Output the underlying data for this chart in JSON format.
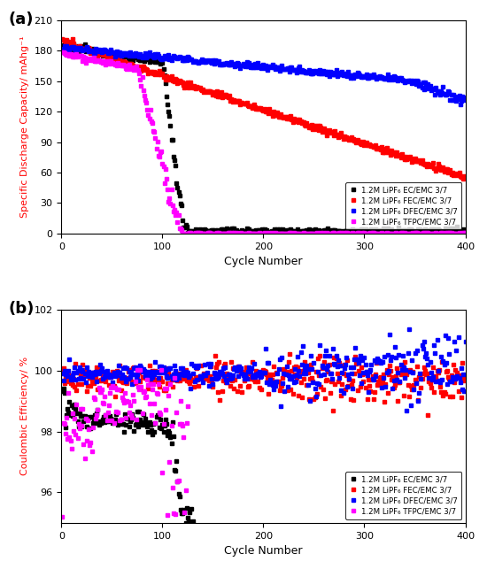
{
  "fig_width": 5.5,
  "fig_height": 6.43,
  "dpi": 100,
  "panel_a": {
    "xlabel": "Cycle Number",
    "ylabel": "Specific Discharge Capacity/ mAhg⁻¹",
    "xlim": [
      0,
      400
    ],
    "ylim": [
      0,
      210
    ],
    "yticks": [
      0,
      30,
      60,
      90,
      120,
      150,
      180,
      210
    ],
    "xticks": [
      0,
      100,
      200,
      300,
      400
    ],
    "ylabel_color": "red",
    "legend_entries": [
      "1.2M LiPF₆ EC/EMC 3/7",
      "1.2M LiPF₆ FEC/EMC 3/7",
      "1.2M LiPF₆ DFEC/EMC 3/7",
      "1.2M LiPF₆ TFPC/EMC 3/7"
    ],
    "colors": [
      "black",
      "red",
      "blue",
      "magenta"
    ],
    "markersize": 2.5
  },
  "panel_b": {
    "xlabel": "Cycle Number",
    "ylabel": "Coulombic Efficiency/ %",
    "xlim": [
      0,
      400
    ],
    "ylim": [
      95,
      102
    ],
    "yticks": [
      96,
      98,
      100,
      102
    ],
    "xticks": [
      0,
      100,
      200,
      300,
      400
    ],
    "ylabel_color": "red",
    "legend_entries": [
      "1.2M LiPF₆ EC/EMC 3/7",
      "1.2M LiPF₆ FEC/EMC 3/7",
      "1.2M LiPF₆ DFEC/EMC 3/7",
      "1.2M LiPF₆ TFPC/EMC 3/7"
    ],
    "colors": [
      "black",
      "red",
      "blue",
      "magenta"
    ],
    "markersize": 2.5
  }
}
